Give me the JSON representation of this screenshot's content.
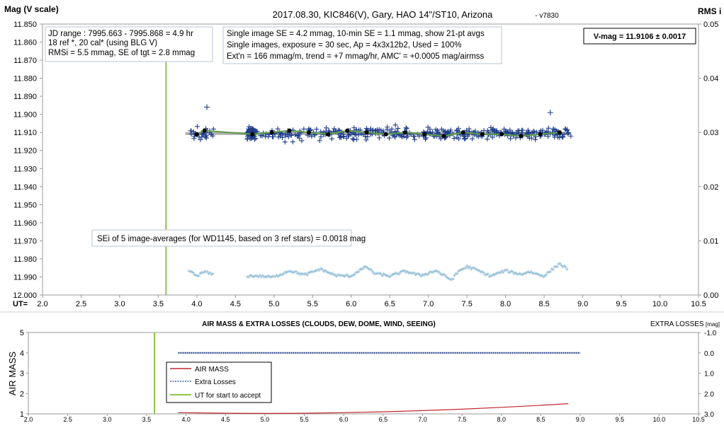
{
  "chart_data": [
    {
      "type": "scatter",
      "title": "2017.08.30,  KIC846(V),  Gary,  HAO 14\"/ST10, Arizona",
      "title_suffix": "- v7830",
      "y_left_label": "Mag (V scale)",
      "y_right_label": "RMS i",
      "x_label": "UT=",
      "xlim": [
        2.0,
        10.5
      ],
      "x_ticks": [
        "2.0",
        "2.5",
        "3.0",
        "3.5",
        "4.0",
        "4.5",
        "5.0",
        "5.5",
        "6.0",
        "6.5",
        "7.0",
        "7.5",
        "8.0",
        "8.5",
        "9.0",
        "9.5",
        "10.0",
        "10.5"
      ],
      "ylim_left": [
        11.85,
        12.0
      ],
      "y_left_ticks": [
        "11.850",
        "11.860",
        "11.870",
        "11.880",
        "11.890",
        "11.900",
        "11.910",
        "11.920",
        "11.930",
        "11.940",
        "11.950",
        "11.960",
        "11.970",
        "11.980",
        "11.990",
        "12.000"
      ],
      "ylim_right": [
        0.0,
        0.05
      ],
      "y_right_ticks": [
        "0.05",
        "0.04",
        "0.03",
        "0.02",
        "0.01",
        "0.00"
      ],
      "grid": false,
      "accept_start_ut": 3.6,
      "magnitude_mean": 11.9106,
      "single_image_x_range": [
        3.9,
        8.85
      ],
      "averages": {
        "x": [
          4.0,
          4.1,
          4.72,
          4.97,
          5.2,
          5.45,
          5.7,
          5.95,
          6.2,
          6.45,
          6.7,
          6.95,
          7.2,
          7.45,
          7.7,
          7.95,
          8.2,
          8.45,
          8.7
        ],
        "y": [
          11.911,
          11.909,
          11.911,
          11.91,
          11.909,
          11.91,
          11.911,
          11.909,
          11.91,
          11.911,
          11.91,
          11.911,
          11.912,
          11.91,
          11.911,
          11.911,
          11.912,
          11.911,
          11.91
        ]
      },
      "rms_trace": {
        "x": [
          3.9,
          4.0,
          4.1,
          4.2,
          4.65,
          4.8,
          5.0,
          5.2,
          5.4,
          5.6,
          5.8,
          6.0,
          6.1,
          6.2,
          6.3,
          6.5,
          6.7,
          6.9,
          7.1,
          7.2,
          7.3,
          7.4,
          7.5,
          7.6,
          7.8,
          8.0,
          8.2,
          8.3,
          8.5,
          8.7,
          8.8
        ],
        "y": [
          0.0045,
          0.0035,
          0.0043,
          0.0038,
          0.0035,
          0.0035,
          0.0033,
          0.0045,
          0.0037,
          0.0048,
          0.0036,
          0.0035,
          0.0045,
          0.0052,
          0.004,
          0.0035,
          0.0044,
          0.0036,
          0.0045,
          0.0036,
          0.0028,
          0.0045,
          0.0052,
          0.0048,
          0.0035,
          0.0045,
          0.0038,
          0.0043,
          0.0035,
          0.0058,
          0.0048
        ]
      },
      "info_boxes": {
        "jd": [
          "JD range : 7995.663 - 7995.868 =  4.9  hr",
          "18 ref *, 20 cal* (using BLG V)",
          "RMSi = 5.5 mmag, SE of tgt = 2.8 mmag"
        ],
        "se": [
          "Single image SE = 4.2 mmag, 10-min SE = 1.1 mmag, show 21-pt avgs",
          "Single images, exposure = 30 sec, Ap = 4x3x12b2, Used = 100%",
          "Ext'n = 166 mmag/m, trend = +7 mmag/hr, AMC' = +0.0005 mag/airmss"
        ],
        "vmag": "V-mag = 11.9106 ± 0.0017",
        "sei": "SEi of 5 image-averages (for WD1145, based on 3 ref stars) = 0.0018 mag"
      },
      "colors": {
        "single_points": "#1f3d8a",
        "average_points": "#000000",
        "fit_line": "#5b9b48",
        "mean_line": "#b0b0b0",
        "rms_points": "#8fbcd6",
        "accept_line": "#8cc63f"
      }
    },
    {
      "type": "line",
      "title": "AIR MASS & EXTRA LOSSES (CLOUDS, DEW, DOME, WIND, SEEING)",
      "y_left_label": "AIR MASS",
      "y_right_label": "EXTRA LOSSES",
      "y_right_unit": "[mag]",
      "xlim": [
        2.0,
        10.5
      ],
      "x_ticks": [
        "2.0",
        "2.5",
        "3.0",
        "3.5",
        "4.0",
        "4.5",
        "5.0",
        "5.5",
        "6.0",
        "6.5",
        "7.0",
        "7.5",
        "8.0",
        "8.5",
        "9.0",
        "9.5",
        "10.0",
        "10.5"
      ],
      "ylim_left": [
        1,
        5
      ],
      "y_left_ticks": [
        "5",
        "4",
        "3",
        "2",
        "1"
      ],
      "ylim_right": [
        -1.0,
        3.0
      ],
      "y_right_ticks": [
        "-1.0",
        "0.0",
        "1.0",
        "2.0",
        "3.0"
      ],
      "accept_start_ut": 3.6,
      "series": [
        {
          "name": "AIR MASS",
          "color": "#c0282d",
          "x": [
            3.9,
            4.5,
            5.0,
            5.5,
            6.0,
            6.5,
            7.0,
            7.5,
            8.0,
            8.5,
            8.85
          ],
          "y": [
            1.06,
            1.03,
            1.02,
            1.03,
            1.06,
            1.1,
            1.16,
            1.23,
            1.32,
            1.42,
            1.5
          ]
        },
        {
          "name": "Extra Losses",
          "color": "#1f3d8a",
          "x": [
            3.9,
            9.0
          ],
          "y": [
            0.0,
            0.0
          ]
        },
        {
          "name": "UT for start to accept",
          "color": "#8cc63f",
          "x": [
            3.6,
            3.6
          ],
          "y": [
            -1.0,
            3.0
          ]
        }
      ]
    }
  ]
}
